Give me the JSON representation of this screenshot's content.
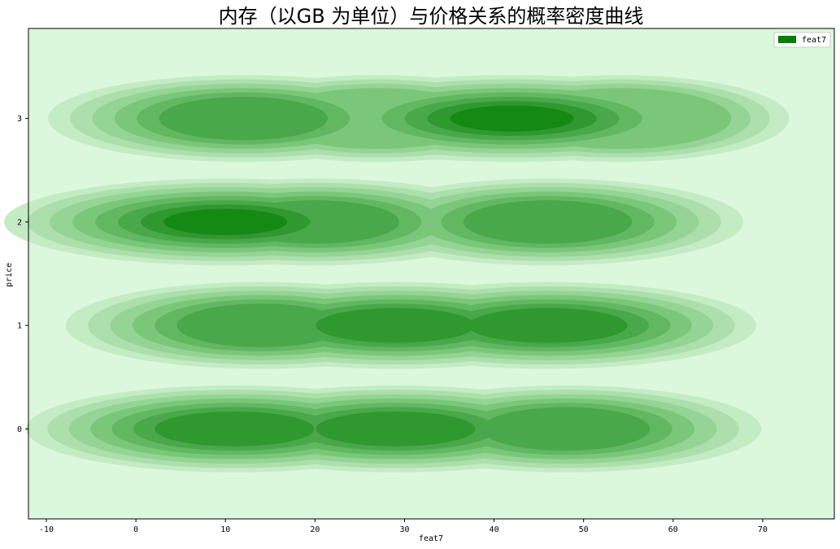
{
  "chart_data": {
    "type": "kde-contour",
    "title": "内存（以GB 为单位）与价格关系的概率密度曲线",
    "xlabel": "feat7",
    "ylabel": "price",
    "xlim": [
      -12,
      78
    ],
    "ylim": [
      -0.87,
      3.87
    ],
    "xticks": [
      -10,
      0,
      10,
      20,
      30,
      40,
      50,
      60,
      70
    ],
    "yticks": [
      0,
      1,
      2,
      3
    ],
    "legend": {
      "label": "feat7",
      "color": "#008000",
      "placement": "top-right"
    },
    "background_color": "#dcf8dc",
    "level_colors": [
      "#c4ecc4",
      "#acdfac",
      "#94d494",
      "#7ac77a",
      "#61b861",
      "#49a849",
      "#2f982f",
      "#148914"
    ],
    "density_peaks": [
      {
        "x": 12,
        "y": 3,
        "peak_level": 6
      },
      {
        "x": 27,
        "y": 3,
        "peak_level": 4
      },
      {
        "x": 42,
        "y": 3,
        "peak_level": 8
      },
      {
        "x": 54,
        "y": 3,
        "peak_level": 4
      },
      {
        "x": 10,
        "y": 2,
        "peak_level": 8
      },
      {
        "x": 20,
        "y": 2,
        "peak_level": 6
      },
      {
        "x": 46,
        "y": 2,
        "peak_level": 6
      },
      {
        "x": 14,
        "y": 1,
        "peak_level": 6
      },
      {
        "x": 29,
        "y": 1,
        "peak_level": 7
      },
      {
        "x": 46,
        "y": 1,
        "peak_level": 7
      },
      {
        "x": 11,
        "y": 0,
        "peak_level": 7
      },
      {
        "x": 29,
        "y": 0,
        "peak_level": 7
      },
      {
        "x": 48,
        "y": 0,
        "peak_level": 6
      }
    ]
  }
}
